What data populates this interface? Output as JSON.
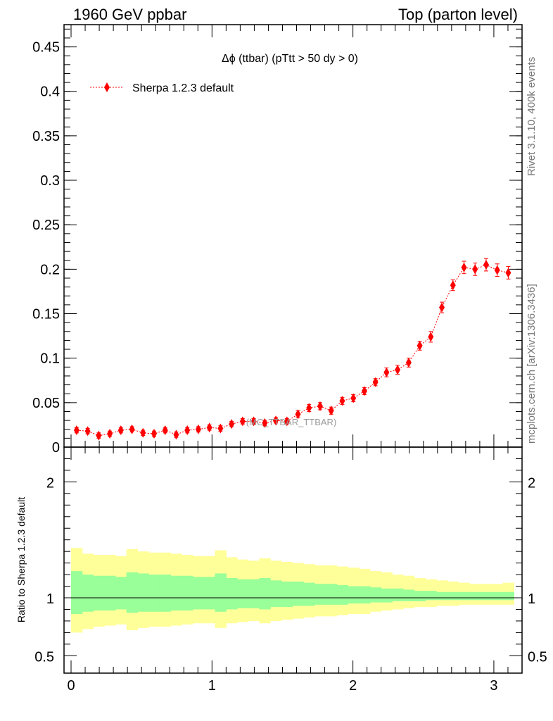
{
  "header": {
    "left_title": "1960 GeV ppbar",
    "right_title": "Top (parton level)"
  },
  "side_labels": {
    "rivet": "Rivet 3.1.10,  400k events",
    "mcplots": "mcplots.cern.ch [arXiv:1306.3436]"
  },
  "watermark": "(MC_TTBAR_TTBAR)",
  "chart_data": [
    {
      "type": "line",
      "title": "Δϕ (ttbar) (pTtt > 50 dy > 0)",
      "xlabel": "",
      "ylabel": "",
      "xlim": [
        -0.05,
        3.2
      ],
      "ylim": [
        0,
        0.475
      ],
      "x_ticks": [
        "0",
        "1",
        "2",
        "3"
      ],
      "y_ticks": [
        "0",
        "0.05",
        "0.1",
        "0.15",
        "0.2",
        "0.25",
        "0.3",
        "0.35",
        "0.4",
        "0.45"
      ],
      "legend": "top-left",
      "series": [
        {
          "name": "Sherpa 1.2.3 default",
          "color": "#ff0000",
          "marker": "diamond",
          "line_style": "dotted",
          "x": [
            0.0393,
            0.1178,
            0.1963,
            0.2749,
            0.3534,
            0.432,
            0.5105,
            0.589,
            0.6676,
            0.7461,
            0.8247,
            0.9032,
            0.9817,
            1.0603,
            1.1388,
            1.2174,
            1.2959,
            1.3744,
            1.453,
            1.5315,
            1.6101,
            1.6886,
            1.7671,
            1.8457,
            1.9242,
            2.0028,
            2.0813,
            2.1598,
            2.2384,
            2.3169,
            2.3955,
            2.474,
            2.5525,
            2.6311,
            2.7096,
            2.7882,
            2.8667,
            2.9452,
            3.0238,
            3.1023
          ],
          "y": [
            0.019,
            0.018,
            0.013,
            0.015,
            0.019,
            0.02,
            0.016,
            0.015,
            0.019,
            0.014,
            0.019,
            0.02,
            0.022,
            0.021,
            0.026,
            0.029,
            0.029,
            0.027,
            0.03,
            0.029,
            0.037,
            0.044,
            0.046,
            0.041,
            0.052,
            0.055,
            0.063,
            0.073,
            0.084,
            0.087,
            0.095,
            0.114,
            0.124,
            0.157,
            0.182,
            0.202,
            0.2,
            0.205,
            0.199,
            0.196
          ],
          "yerr": [
            0.003,
            0.003,
            0.003,
            0.003,
            0.003,
            0.003,
            0.003,
            0.003,
            0.003,
            0.003,
            0.003,
            0.003,
            0.003,
            0.003,
            0.003,
            0.003,
            0.003,
            0.003,
            0.003,
            0.003,
            0.004,
            0.004,
            0.004,
            0.004,
            0.004,
            0.004,
            0.004,
            0.004,
            0.005,
            0.005,
            0.005,
            0.005,
            0.006,
            0.006,
            0.006,
            0.007,
            0.007,
            0.007,
            0.007,
            0.007
          ]
        }
      ]
    },
    {
      "type": "area",
      "title": "",
      "xlabel": "",
      "ylabel": "Ratio to Sherpa 1.2.3 default",
      "xlim": [
        -0.05,
        3.2
      ],
      "ylim": [
        0.35,
        2.3
      ],
      "x_ticks": [
        "0",
        "1",
        "2",
        "3"
      ],
      "y_ticks": [
        "0.5",
        "1",
        "2"
      ],
      "reference_line": 1,
      "bin_edges": [
        0.0,
        0.0785,
        0.1571,
        0.2356,
        0.3142,
        0.3927,
        0.4712,
        0.5498,
        0.6283,
        0.7069,
        0.7854,
        0.8639,
        0.9425,
        1.021,
        1.0996,
        1.1781,
        1.2566,
        1.3352,
        1.4137,
        1.4923,
        1.5708,
        1.6493,
        1.7279,
        1.8064,
        1.885,
        1.9635,
        2.042,
        2.1206,
        2.1991,
        2.2777,
        2.3562,
        2.4347,
        2.5133,
        2.5918,
        2.6704,
        2.7489,
        2.8274,
        2.906,
        2.9845,
        3.0631,
        3.1416
      ],
      "band_outer": {
        "color": "#ffff99",
        "upper": [
          1.43,
          1.38,
          1.37,
          1.37,
          1.36,
          1.42,
          1.4,
          1.39,
          1.39,
          1.38,
          1.37,
          1.36,
          1.36,
          1.41,
          1.35,
          1.33,
          1.32,
          1.34,
          1.32,
          1.31,
          1.3,
          1.29,
          1.28,
          1.28,
          1.27,
          1.26,
          1.25,
          1.23,
          1.22,
          1.2,
          1.19,
          1.17,
          1.16,
          1.15,
          1.14,
          1.13,
          1.12,
          1.12,
          1.12,
          1.13
        ],
        "lower": [
          0.7,
          0.73,
          0.75,
          0.76,
          0.77,
          0.72,
          0.74,
          0.75,
          0.75,
          0.76,
          0.77,
          0.78,
          0.78,
          0.74,
          0.78,
          0.79,
          0.8,
          0.78,
          0.8,
          0.81,
          0.82,
          0.83,
          0.84,
          0.84,
          0.85,
          0.86,
          0.86,
          0.88,
          0.89,
          0.9,
          0.91,
          0.92,
          0.92,
          0.93,
          0.93,
          0.94,
          0.94,
          0.94,
          0.94,
          0.94
        ]
      },
      "band_inner": {
        "color": "#99ff99",
        "upper": [
          1.23,
          1.2,
          1.19,
          1.19,
          1.18,
          1.22,
          1.21,
          1.2,
          1.2,
          1.19,
          1.19,
          1.18,
          1.18,
          1.21,
          1.17,
          1.16,
          1.16,
          1.17,
          1.15,
          1.14,
          1.14,
          1.13,
          1.12,
          1.12,
          1.11,
          1.1,
          1.1,
          1.09,
          1.08,
          1.08,
          1.07,
          1.06,
          1.06,
          1.05,
          1.05,
          1.05,
          1.05,
          1.05,
          1.05,
          1.05
        ],
        "lower": [
          0.86,
          0.88,
          0.89,
          0.89,
          0.9,
          0.87,
          0.88,
          0.88,
          0.88,
          0.89,
          0.89,
          0.9,
          0.9,
          0.88,
          0.9,
          0.91,
          0.91,
          0.9,
          0.92,
          0.92,
          0.93,
          0.93,
          0.94,
          0.94,
          0.94,
          0.95,
          0.95,
          0.96,
          0.96,
          0.97,
          0.97,
          0.97,
          0.98,
          0.98,
          0.98,
          0.98,
          0.98,
          0.98,
          0.98,
          0.98
        ]
      }
    }
  ]
}
